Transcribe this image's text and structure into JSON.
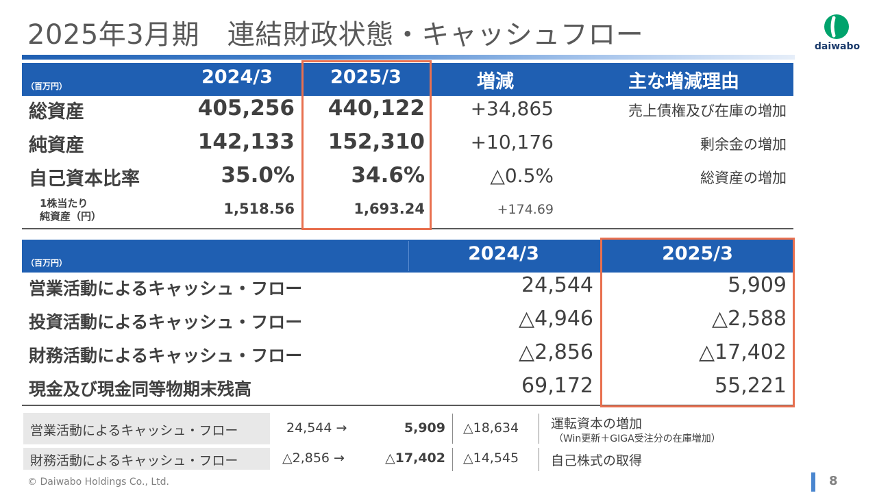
{
  "title": "2025年3月期　連結財政状態・キャッシュフロー",
  "logo": {
    "text": "daiwabo",
    "brand_color": "#00a36c"
  },
  "balance": {
    "unit": "（百万円）",
    "headers": [
      "2024/3",
      "2025/3",
      "増減",
      "主な増減理由"
    ],
    "rows": [
      {
        "label": "総資産",
        "v2024": "405,256",
        "v2025": "440,122",
        "change": "+34,865",
        "reason": "売上債権及び在庫の増加"
      },
      {
        "label": "純資産",
        "v2024": "142,133",
        "v2025": "152,310",
        "change": "+10,176",
        "reason": "剰余金の増加"
      },
      {
        "label": "自己資本比率",
        "v2024": "35.0%",
        "v2025": "34.6%",
        "change": "△0.5%",
        "reason": "総資産の増加"
      }
    ],
    "per_share": {
      "label_line1": "1株当たり",
      "label_line2": "純資産（円）",
      "v2024": "1,518.56",
      "v2025": "1,693.24",
      "change": "+174.69"
    }
  },
  "cashflow": {
    "unit": "（百万円）",
    "headers": [
      "2024/3",
      "2025/3"
    ],
    "rows": [
      {
        "label": "営業活動によるキャッシュ・フロー",
        "v2024": "24,544",
        "v2025": "5,909"
      },
      {
        "label": "投資活動によるキャッシュ・フロー",
        "v2024": "△4,946",
        "v2025": "△2,588"
      },
      {
        "label": "財務活動によるキャッシュ・フロー",
        "v2024": "△2,856",
        "v2025": "△17,402"
      },
      {
        "label": "現金及び現金同等物期末残高",
        "v2024": "69,172",
        "v2025": "55,221"
      }
    ]
  },
  "notes": [
    {
      "label": "営業活動によるキャッシュ・フロー",
      "from": "24,544 →",
      "to": "5,909",
      "diff": "△18,634",
      "reason": "運転資本の増加",
      "reason_sub": "（Win更新＋GIGA受注分の在庫増加）"
    },
    {
      "label": "財務活動によるキャッシュ・フロー",
      "from": "△2,856 →",
      "to": "△17,402",
      "diff": "△14,545",
      "reason": "自己株式の取得",
      "reason_sub": ""
    }
  ],
  "footer": "© Daiwabo Holdings Co., Ltd.",
  "page_number": "8"
}
